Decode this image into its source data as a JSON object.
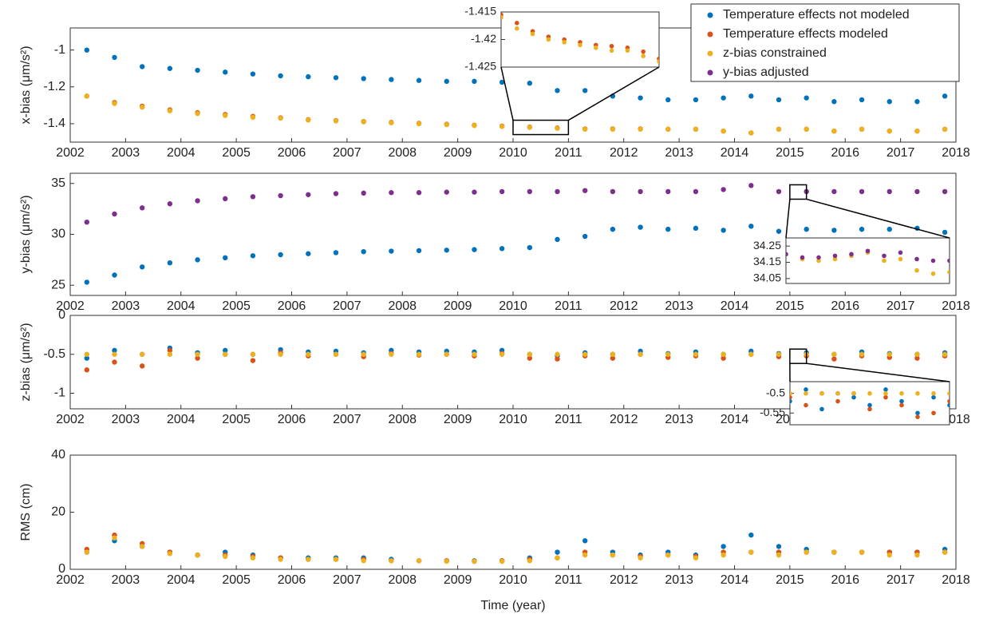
{
  "chart_data": [
    {
      "type": "scatter",
      "ylabel": "x-bias (μm/s²)",
      "xlim": [
        2002,
        2018
      ],
      "xticks": [
        2002,
        2003,
        2004,
        2005,
        2006,
        2007,
        2008,
        2009,
        2010,
        2011,
        2012,
        2013,
        2014,
        2015,
        2016,
        2017,
        2018
      ],
      "ylim": [
        -1.5,
        -0.88
      ],
      "yticks": [
        -1,
        -1.2,
        -1.4
      ],
      "x": [
        2002.3,
        2002.8,
        2003.3,
        2003.8,
        2004.3,
        2004.8,
        2005.3,
        2005.8,
        2006.3,
        2006.8,
        2007.3,
        2007.8,
        2008.3,
        2008.8,
        2009.3,
        2009.8,
        2010.3,
        2010.8,
        2011.3,
        2011.8,
        2012.3,
        2012.8,
        2013.3,
        2013.8,
        2014.3,
        2014.8,
        2015.3,
        2015.8,
        2016.3,
        2016.8,
        2017.3,
        2017.8
      ],
      "series": [
        {
          "name": "Temperature effects not modeled",
          "color": "#0072BD",
          "values": [
            -1.0,
            -1.04,
            -1.09,
            -1.1,
            -1.11,
            -1.12,
            -1.13,
            -1.14,
            -1.145,
            -1.15,
            -1.155,
            -1.16,
            -1.165,
            -1.17,
            -1.17,
            -1.175,
            -1.18,
            -1.22,
            -1.22,
            -1.25,
            -1.26,
            -1.27,
            -1.27,
            -1.26,
            -1.25,
            -1.27,
            -1.26,
            -1.28,
            -1.27,
            -1.28,
            -1.28,
            -1.25
          ]
        },
        {
          "name": "Temperature effects modeled",
          "color": "#D95319",
          "values": [
            -1.25,
            -1.285,
            -1.305,
            -1.325,
            -1.34,
            -1.35,
            -1.36,
            -1.368,
            -1.378,
            -1.383,
            -1.388,
            -1.393,
            -1.398,
            -1.403,
            -1.408,
            -1.413,
            -1.418,
            -1.423,
            -1.428,
            -1.428,
            -1.428,
            -1.43,
            -1.43,
            -1.44,
            -1.45,
            -1.43,
            -1.43,
            -1.44,
            -1.43,
            -1.44,
            -1.44,
            -1.43
          ]
        },
        {
          "name": "z-bias constrained",
          "color": "#EDB120",
          "values": [
            -1.25,
            -1.29,
            -1.31,
            -1.33,
            -1.345,
            -1.355,
            -1.365,
            -1.37,
            -1.38,
            -1.385,
            -1.39,
            -1.395,
            -1.4,
            -1.405,
            -1.41,
            -1.415,
            -1.42,
            -1.425,
            -1.43,
            -1.43,
            -1.43,
            -1.43,
            -1.43,
            -1.44,
            -1.45,
            -1.43,
            -1.43,
            -1.44,
            -1.43,
            -1.44,
            -1.44,
            -1.43
          ]
        }
      ]
    },
    {
      "type": "scatter",
      "ylabel": "y-bias (μm/s²)",
      "xlim": [
        2002,
        2018
      ],
      "xticks": [
        2002,
        2003,
        2004,
        2005,
        2006,
        2007,
        2008,
        2009,
        2010,
        2011,
        2012,
        2013,
        2014,
        2015,
        2016,
        2017,
        2018
      ],
      "ylim": [
        24,
        36
      ],
      "yticks": [
        25,
        30,
        35
      ],
      "x": [
        2002.3,
        2002.8,
        2003.3,
        2003.8,
        2004.3,
        2004.8,
        2005.3,
        2005.8,
        2006.3,
        2006.8,
        2007.3,
        2007.8,
        2008.3,
        2008.8,
        2009.3,
        2009.8,
        2010.3,
        2010.8,
        2011.3,
        2011.8,
        2012.3,
        2012.8,
        2013.3,
        2013.8,
        2014.3,
        2014.8,
        2015.3,
        2015.8,
        2016.3,
        2016.8,
        2017.3,
        2017.8
      ],
      "series": [
        {
          "name": "Temperature effects not modeled",
          "color": "#0072BD",
          "values": [
            25.3,
            26,
            26.8,
            27.2,
            27.5,
            27.7,
            27.9,
            28,
            28.1,
            28.2,
            28.3,
            28.35,
            28.4,
            28.45,
            28.5,
            28.6,
            28.7,
            29.5,
            29.8,
            30.5,
            30.7,
            30.5,
            30.6,
            30.4,
            30.8,
            30.3,
            30.5,
            30.4,
            30.5,
            30.5,
            30.6,
            30.2
          ]
        },
        {
          "name": "y-bias adjusted",
          "color": "#7E2F8E",
          "values": [
            31.2,
            32,
            32.6,
            33,
            33.3,
            33.5,
            33.7,
            33.8,
            33.9,
            34,
            34.05,
            34.1,
            34.1,
            34.15,
            34.15,
            34.2,
            34.2,
            34.2,
            34.3,
            34.2,
            34.2,
            34.2,
            34.2,
            34.4,
            34.8,
            34.2,
            34.2,
            34.2,
            34.2,
            34.2,
            34.2,
            34.2
          ]
        }
      ]
    },
    {
      "type": "scatter",
      "ylabel": "z-bias (μm/s²)",
      "xlim": [
        2002,
        2018
      ],
      "xticks": [
        2002,
        2003,
        2004,
        2005,
        2006,
        2007,
        2008,
        2009,
        2010,
        2011,
        2012,
        2013,
        2014,
        2015,
        2016,
        2017,
        2018
      ],
      "ylim": [
        -1.2,
        0
      ],
      "yticks": [
        0,
        -0.5,
        -1
      ],
      "x": [
        2002.3,
        2002.8,
        2003.3,
        2003.8,
        2004.3,
        2004.8,
        2005.3,
        2005.8,
        2006.3,
        2006.8,
        2007.3,
        2007.8,
        2008.3,
        2008.8,
        2009.3,
        2009.8,
        2010.3,
        2010.8,
        2011.3,
        2011.8,
        2012.3,
        2012.8,
        2013.3,
        2013.8,
        2014.3,
        2014.8,
        2015.3,
        2015.8,
        2016.3,
        2016.8,
        2017.3,
        2017.8
      ],
      "series": [
        {
          "name": "Temperature effects not modeled",
          "color": "#0072BD",
          "values": [
            -0.55,
            -0.45,
            -0.5,
            -0.42,
            -0.48,
            -0.45,
            -0.5,
            -0.44,
            -0.47,
            -0.46,
            -0.48,
            -0.45,
            -0.47,
            -0.46,
            -0.47,
            -0.45,
            -0.5,
            -0.52,
            -0.48,
            -0.5,
            -0.46,
            -0.49,
            -0.47,
            -0.5,
            -0.46,
            -0.49,
            -0.48,
            -0.5,
            -0.47,
            -0.49,
            -0.5,
            -0.48
          ]
        },
        {
          "name": "Temperature effects modeled",
          "color": "#D95319",
          "values": [
            -0.7,
            -0.6,
            -0.65,
            -0.45,
            -0.55,
            -0.5,
            -0.58,
            -0.48,
            -0.52,
            -0.5,
            -0.53,
            -0.49,
            -0.51,
            -0.5,
            -0.52,
            -0.49,
            -0.55,
            -0.56,
            -0.52,
            -0.55,
            -0.5,
            -0.54,
            -0.52,
            -0.55,
            -0.5,
            -0.53,
            -0.52,
            -0.56,
            -0.52,
            -0.54,
            -0.55,
            -0.52
          ]
        },
        {
          "name": "z-bias constrained",
          "color": "#EDB120",
          "values": [
            -0.5,
            -0.5,
            -0.5,
            -0.5,
            -0.5,
            -0.5,
            -0.5,
            -0.5,
            -0.5,
            -0.5,
            -0.5,
            -0.5,
            -0.5,
            -0.5,
            -0.5,
            -0.5,
            -0.5,
            -0.5,
            -0.5,
            -0.5,
            -0.5,
            -0.5,
            -0.5,
            -0.5,
            -0.5,
            -0.5,
            -0.5,
            -0.5,
            -0.5,
            -0.5,
            -0.5,
            -0.5
          ]
        }
      ]
    },
    {
      "type": "scatter",
      "ylabel": "RMS (cm)",
      "xlabel": "Time (year)",
      "xlim": [
        2002,
        2018
      ],
      "xticks": [
        2002,
        2003,
        2004,
        2005,
        2006,
        2007,
        2008,
        2009,
        2010,
        2011,
        2012,
        2013,
        2014,
        2015,
        2016,
        2017,
        2018
      ],
      "ylim": [
        0,
        40
      ],
      "yticks": [
        0,
        20,
        40
      ],
      "x": [
        2002.3,
        2002.8,
        2003.3,
        2003.8,
        2004.3,
        2004.8,
        2005.3,
        2005.8,
        2006.3,
        2006.8,
        2007.3,
        2007.8,
        2008.3,
        2008.8,
        2009.3,
        2009.8,
        2010.3,
        2010.8,
        2011.3,
        2011.8,
        2012.3,
        2012.8,
        2013.3,
        2013.8,
        2014.3,
        2014.8,
        2015.3,
        2015.8,
        2016.3,
        2016.8,
        2017.3,
        2017.8
      ],
      "series": [
        {
          "name": "Temperature effects not modeled",
          "color": "#0072BD",
          "values": [
            6,
            10,
            8,
            6,
            5,
            6,
            5,
            4,
            4,
            4,
            4,
            3.5,
            3,
            3,
            3,
            3,
            4,
            6,
            10,
            6,
            5,
            6,
            5,
            8,
            12,
            8,
            7,
            6,
            6,
            6,
            6,
            7
          ]
        },
        {
          "name": "Temperature effects modeled",
          "color": "#D95319",
          "values": [
            7,
            12,
            9,
            6,
            5,
            5,
            4.5,
            4,
            3.5,
            3.5,
            3.5,
            3,
            3,
            3,
            2.8,
            3,
            3.5,
            4,
            6,
            5,
            4.5,
            5,
            4.5,
            6,
            6,
            6,
            6,
            6,
            6,
            6,
            6,
            6
          ]
        },
        {
          "name": "z-bias constrained",
          "color": "#EDB120",
          "values": [
            6,
            11,
            8,
            5.5,
            5,
            4.5,
            4,
            3.5,
            3.5,
            3.5,
            3,
            3,
            3,
            2.8,
            2.8,
            2.8,
            3,
            4,
            5,
            5,
            4,
            5,
            4,
            5,
            6,
            5,
            6,
            6,
            6,
            5,
            5,
            6
          ]
        }
      ]
    },
    {
      "type": "scatter",
      "xlim": [
        2010,
        2011
      ],
      "ylim": [
        -1.425,
        -1.415
      ],
      "yticks": [
        -1.415,
        -1.42,
        -1.425
      ],
      "x": [
        2010,
        2010.1,
        2010.2,
        2010.3,
        2010.4,
        2010.5,
        2010.6,
        2010.7,
        2010.8,
        2010.9,
        2011
      ],
      "series": [
        {
          "name": "Temperature effects modeled",
          "color": "#D95319",
          "values": [
            -1.4155,
            -1.417,
            -1.4185,
            -1.4195,
            -1.42,
            -1.4205,
            -1.421,
            -1.4212,
            -1.4215,
            -1.4222,
            -1.4235
          ]
        },
        {
          "name": "z-bias constrained",
          "color": "#EDB120",
          "values": [
            -1.416,
            -1.418,
            -1.419,
            -1.42,
            -1.4205,
            -1.421,
            -1.4215,
            -1.422,
            -1.422,
            -1.423,
            -1.424
          ]
        }
      ]
    },
    {
      "type": "scatter",
      "xlim": [
        2015,
        2015.3
      ],
      "ylim": [
        34.02,
        34.3
      ],
      "yticks": [
        34.25,
        34.15,
        34.05
      ],
      "x": [
        2015,
        2015.03,
        2015.06,
        2015.09,
        2015.12,
        2015.15,
        2015.18,
        2015.21,
        2015.24,
        2015.27,
        2015.3
      ],
      "series": [
        {
          "name": "z-bias constrained",
          "color": "#EDB120",
          "values": [
            34.2,
            34.17,
            34.16,
            34.17,
            34.19,
            34.21,
            34.16,
            34.17,
            34.1,
            34.08,
            34.09
          ]
        },
        {
          "name": "y-bias adjusted",
          "color": "#7E2F8E",
          "values": [
            34.2,
            34.18,
            34.18,
            34.19,
            34.2,
            34.22,
            34.19,
            34.21,
            34.17,
            34.16,
            34.16
          ]
        }
      ]
    },
    {
      "type": "scatter",
      "xlim": [
        2015,
        2015.3
      ],
      "ylim": [
        -0.58,
        -0.47
      ],
      "yticks": [
        -0.5,
        -0.55
      ],
      "x": [
        2015,
        2015.03,
        2015.06,
        2015.09,
        2015.12,
        2015.15,
        2015.18,
        2015.21,
        2015.24,
        2015.27,
        2015.3
      ],
      "series": [
        {
          "name": "Temperature effects not modeled",
          "color": "#0072BD",
          "values": [
            -0.52,
            -0.49,
            -0.54,
            -0.5,
            -0.51,
            -0.53,
            -0.49,
            -0.52,
            -0.55,
            -0.51,
            -0.53
          ]
        },
        {
          "name": "Temperature effects modeled",
          "color": "#D95319",
          "values": [
            -0.51,
            -0.53,
            -0.5,
            -0.52,
            -0.5,
            -0.54,
            -0.51,
            -0.53,
            -0.56,
            -0.55,
            -0.52
          ]
        },
        {
          "name": "z-bias constrained",
          "color": "#EDB120",
          "values": [
            -0.5,
            -0.5,
            -0.5,
            -0.5,
            -0.5,
            -0.5,
            -0.5,
            -0.5,
            -0.5,
            -0.5,
            -0.5
          ]
        }
      ]
    }
  ]
}
